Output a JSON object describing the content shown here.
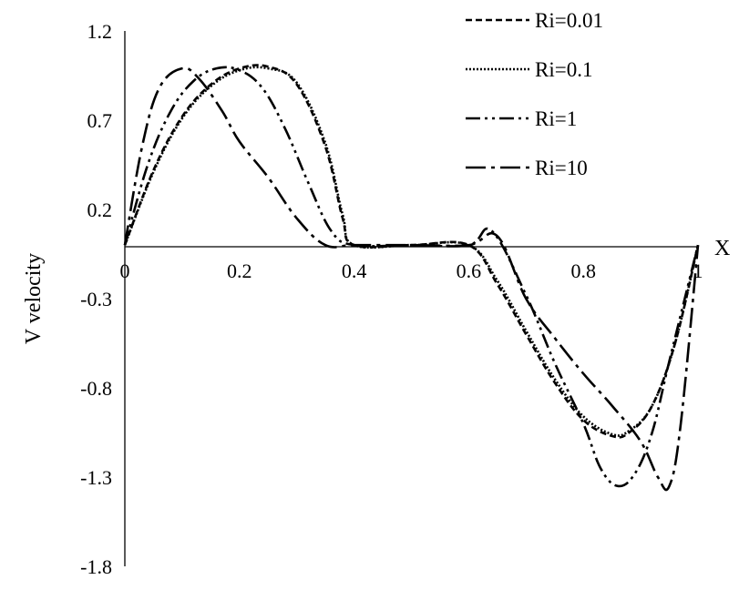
{
  "chart_data": {
    "type": "line",
    "xlabel": "X",
    "ylabel": "V velocity",
    "xlim": [
      0,
      1
    ],
    "ylim": [
      -1.8,
      1.2
    ],
    "x_ticks": [
      "0",
      "0.2",
      "0.4",
      "0.6",
      "0.8",
      "1"
    ],
    "y_ticks": [
      "1.2",
      "0.7",
      "0.2",
      "-0.3",
      "-0.8",
      "-1.3",
      "-1.8"
    ],
    "grid": false,
    "legend_position": "top-right",
    "series": [
      {
        "name": "Ri=0.01",
        "dash": "dashed",
        "x": [
          0,
          0.05,
          0.1,
          0.15,
          0.2,
          0.25,
          0.3,
          0.35,
          0.38,
          0.4,
          0.5,
          0.6,
          0.65,
          0.7,
          0.75,
          0.8,
          0.85,
          0.88,
          0.92,
          0.96,
          1.0
        ],
        "y": [
          0,
          0.42,
          0.72,
          0.9,
          0.99,
          1.0,
          0.9,
          0.55,
          0.15,
          0,
          0,
          0,
          -0.22,
          -0.5,
          -0.77,
          -0.98,
          -1.07,
          -1.05,
          -0.9,
          -0.55,
          0
        ]
      },
      {
        "name": "Ri=0.1",
        "dash": "dotted",
        "x": [
          0,
          0.05,
          0.1,
          0.15,
          0.2,
          0.25,
          0.3,
          0.35,
          0.38,
          0.4,
          0.5,
          0.6,
          0.65,
          0.7,
          0.75,
          0.8,
          0.85,
          0.88,
          0.92,
          0.96,
          1.0
        ],
        "y": [
          0,
          0.41,
          0.71,
          0.89,
          0.98,
          0.99,
          0.91,
          0.57,
          0.17,
          0,
          0,
          0,
          -0.2,
          -0.48,
          -0.75,
          -0.96,
          -1.06,
          -1.04,
          -0.9,
          -0.55,
          0
        ]
      },
      {
        "name": "Ri=1",
        "dash": "dash-dot",
        "x": [
          0,
          0.04,
          0.08,
          0.12,
          0.16,
          0.2,
          0.24,
          0.28,
          0.32,
          0.36,
          0.4,
          0.5,
          0.6,
          0.64,
          0.7,
          0.75,
          0.8,
          0.83,
          0.86,
          0.89,
          0.92,
          0.95,
          1.0
        ],
        "y": [
          0,
          0.45,
          0.75,
          0.92,
          0.99,
          0.98,
          0.88,
          0.65,
          0.35,
          0.08,
          0,
          0,
          0,
          0.08,
          -0.28,
          -0.66,
          -1.0,
          -1.25,
          -1.35,
          -1.28,
          -1.05,
          -0.65,
          0
        ]
      },
      {
        "name": "Ri=10",
        "dash": "long-dash-dot",
        "x": [
          0,
          0.03,
          0.06,
          0.1,
          0.13,
          0.17,
          0.2,
          0.25,
          0.3,
          0.35,
          0.4,
          0.5,
          0.6,
          0.65,
          0.7,
          0.75,
          0.8,
          0.85,
          0.9,
          0.93,
          0.95,
          0.97,
          1.0
        ],
        "y": [
          0,
          0.55,
          0.88,
          0.99,
          0.93,
          0.75,
          0.58,
          0.38,
          0.15,
          0,
          0,
          0,
          0,
          0.05,
          -0.3,
          -0.52,
          -0.72,
          -0.9,
          -1.1,
          -1.3,
          -1.35,
          -1.0,
          0
        ]
      }
    ]
  }
}
